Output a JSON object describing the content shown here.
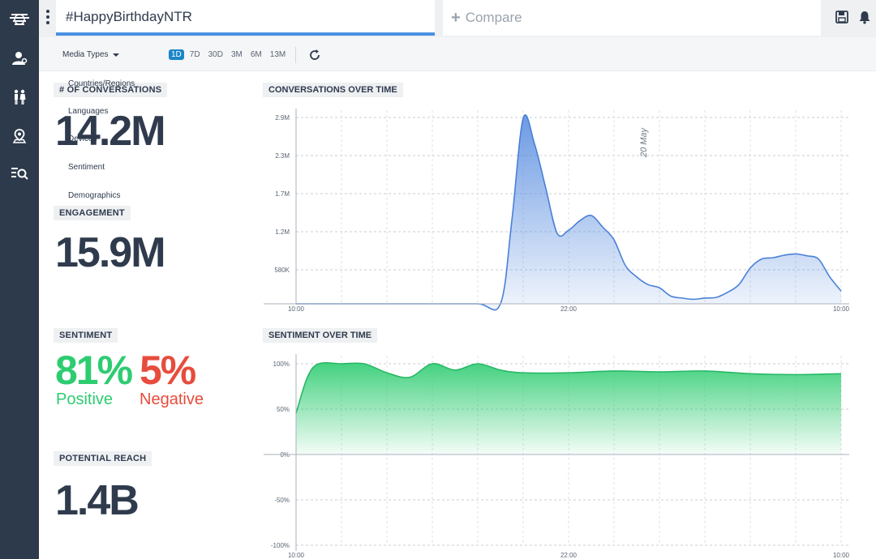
{
  "colors": {
    "sidebar": "#2d3a4c",
    "accent": "#4a90e2",
    "positive": "#2ecc71",
    "negative": "#e74c3c",
    "conversations_fill": "#5b8fe0",
    "sentiment_fill": "#2ecc71"
  },
  "sidebar": {
    "icons": [
      "logo-icon",
      "user-icon",
      "people-icon",
      "location-icon",
      "search-list-icon"
    ]
  },
  "topbar": {
    "search_value": "#HappyBirthdayNTR",
    "compare_label": "Compare",
    "icons": [
      "save-icon",
      "bell-icon"
    ]
  },
  "filters": {
    "media_types": "Media Types",
    "ranges": [
      {
        "label": "1D",
        "active": true
      },
      {
        "label": "7D",
        "active": false
      },
      {
        "label": "30D",
        "active": false
      },
      {
        "label": "3M",
        "active": false
      },
      {
        "label": "6M",
        "active": false
      },
      {
        "label": "13M",
        "active": false
      }
    ],
    "refresh_icon": "refresh-icon"
  },
  "dropdown": {
    "items": [
      "Countries/Regions",
      "Languages",
      "Devices",
      "Sentiment",
      "Demographics"
    ]
  },
  "stats": {
    "conversations_label": "# OF CONVERSATIONS",
    "conversations_value": "14.2M",
    "engagement_label": "ENGAGEMENT",
    "engagement_value": "15.9M",
    "sentiment_label": "SENTIMENT",
    "positive_pct": "81%",
    "positive_word": "Positive",
    "negative_pct": "5%",
    "negative_word": "Negative",
    "reach_label": "POTENTIAL REACH",
    "reach_value": "1.4B"
  },
  "chart_data": [
    {
      "type": "area",
      "title": "CONVERSATIONS OVER TIME",
      "x_ticks": [
        "10:00",
        "22:00",
        "10:00"
      ],
      "y_ticks": [
        "580K",
        "1.2M",
        "1.7M",
        "2.3M",
        "2.9M"
      ],
      "annotation": "20 May",
      "ylim": [
        0,
        2900000
      ],
      "x": [
        0,
        2,
        4,
        6,
        8,
        9,
        9.5,
        10,
        10.5,
        11,
        11.5,
        12,
        12.5,
        13,
        13.5,
        14,
        14.5,
        15,
        15.5,
        16,
        16.5,
        17,
        17.5,
        18,
        18.5,
        19,
        19.5,
        20,
        20.5,
        21,
        21.5,
        22,
        22.5,
        23,
        23.5,
        24
      ],
      "series": [
        {
          "values": [
            0,
            0,
            0,
            0,
            0,
            0,
            1300000,
            2900000,
            2500000,
            1800000,
            1100000,
            1150000,
            1300000,
            1380000,
            1200000,
            1000000,
            600000,
            420000,
            300000,
            250000,
            120000,
            90000,
            70000,
            90000,
            100000,
            180000,
            300000,
            560000,
            700000,
            720000,
            760000,
            780000,
            750000,
            700000,
            420000,
            200000
          ]
        }
      ]
    },
    {
      "type": "area",
      "title": "SENTIMENT OVER TIME",
      "x_ticks": [
        "10:00",
        "22:00",
        "10:00"
      ],
      "y_ticks": [
        "100%",
        "50%",
        "0%",
        "-50%",
        "-100%"
      ],
      "ylim": [
        -100,
        100
      ],
      "x": [
        0,
        0.5,
        1,
        2,
        3,
        4,
        5,
        6,
        7,
        8,
        9,
        10,
        12,
        14,
        16,
        18,
        20,
        22,
        24
      ],
      "series": [
        {
          "values": [
            45,
            85,
            100,
            100,
            100,
            90,
            85,
            100,
            93,
            100,
            93,
            90,
            90,
            92,
            91,
            92,
            89,
            88,
            89
          ]
        }
      ]
    }
  ]
}
